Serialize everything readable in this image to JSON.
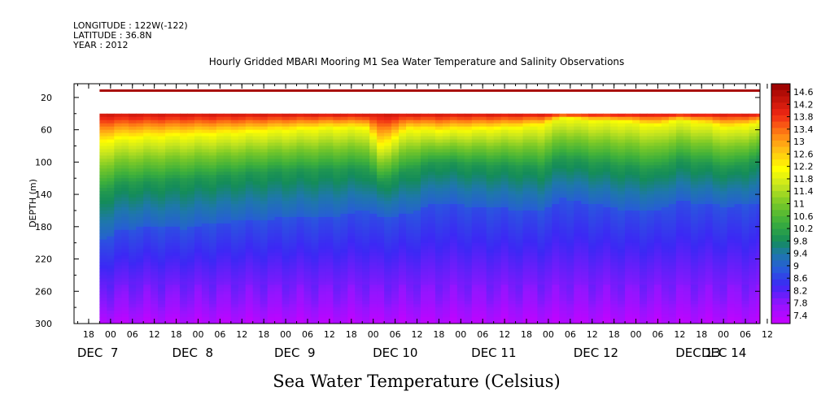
{
  "header": {
    "lines": [
      "LONGITUDE : 122W(-122)",
      "LATITUDE : 36.8N",
      "YEAR : 2012"
    ],
    "title": "Hourly Gridded MBARI Mooring M1 Sea Water Temperature and Salinity Observations"
  },
  "chart_data": {
    "type": "heatmap",
    "title": "Hourly Gridded MBARI Mooring M1 Sea Water Temperature and Salinity Observations",
    "xlabel": "",
    "ylabel": "DEPTH (m)",
    "bottom_label": "Sea Water Temperature (Celsius)",
    "y_axis": {
      "range": [
        3,
        300
      ],
      "inverted": true,
      "ticks": [
        20,
        60,
        100,
        140,
        180,
        220,
        260,
        300
      ]
    },
    "x_axis": {
      "range_hours": [
        0,
        188
      ],
      "hour_ticks": [
        "18",
        "00",
        "06",
        "12",
        "18",
        "00",
        "06",
        "12",
        "18",
        "00",
        "06",
        "12",
        "18",
        "00",
        "06",
        "12",
        "18",
        "00",
        "06",
        "12",
        "18",
        "00",
        "06",
        "12",
        "18",
        "00",
        "06",
        "12",
        "18",
        "00",
        "06",
        "12"
      ],
      "date_labels": [
        "DEC  7",
        "DEC  8",
        "DEC  9",
        "DEC 10",
        "DEC 11",
        "DEC 12",
        "DEC 13",
        "DEC 14"
      ]
    },
    "colorbar": {
      "labels": [
        "14.6",
        "14.2",
        "13.8",
        "13.4",
        "13",
        "12.6",
        "12.2",
        "11.8",
        "11.4",
        "11",
        "10.6",
        "10.2",
        "9.8",
        "9.4",
        "9",
        "8.6",
        "8.2",
        "7.8",
        "7.4"
      ],
      "range": [
        7.2,
        14.8
      ]
    },
    "data_region": {
      "start_hour": 7,
      "surface_band_depth": [
        10,
        13
      ],
      "surface_band_temperature": 14.6,
      "data_top_depth": 40
    },
    "thermocline_depths": {
      "hours": [
        7,
        12,
        20,
        30,
        40,
        55,
        70,
        80,
        84,
        92,
        100,
        110,
        120,
        128,
        134,
        140,
        150,
        160,
        165,
        172,
        180,
        188
      ],
      "isotherm_12_m": [
        78,
        72,
        70,
        68,
        66,
        62,
        58,
        58,
        82,
        60,
        62,
        60,
        58,
        55,
        45,
        48,
        50,
        55,
        48,
        52,
        58,
        52
      ],
      "isotherm_10_m": [
        140,
        128,
        125,
        122,
        118,
        112,
        110,
        108,
        125,
        110,
        100,
        104,
        105,
        108,
        95,
        100,
        105,
        110,
        98,
        102,
        108,
        96
      ],
      "isotherm_9_m": [
        200,
        185,
        180,
        182,
        175,
        170,
        168,
        160,
        168,
        165,
        150,
        155,
        158,
        160,
        145,
        150,
        158,
        160,
        148,
        152,
        155,
        150
      ]
    },
    "profile": {
      "temperature": [
        14.4,
        13.0,
        12.0,
        11.0,
        10.0,
        9.4,
        8.8,
        8.2,
        7.8,
        7.4
      ],
      "depth_m": [
        40,
        50,
        72,
        98,
        120,
        150,
        195,
        245,
        280,
        300
      ]
    }
  }
}
